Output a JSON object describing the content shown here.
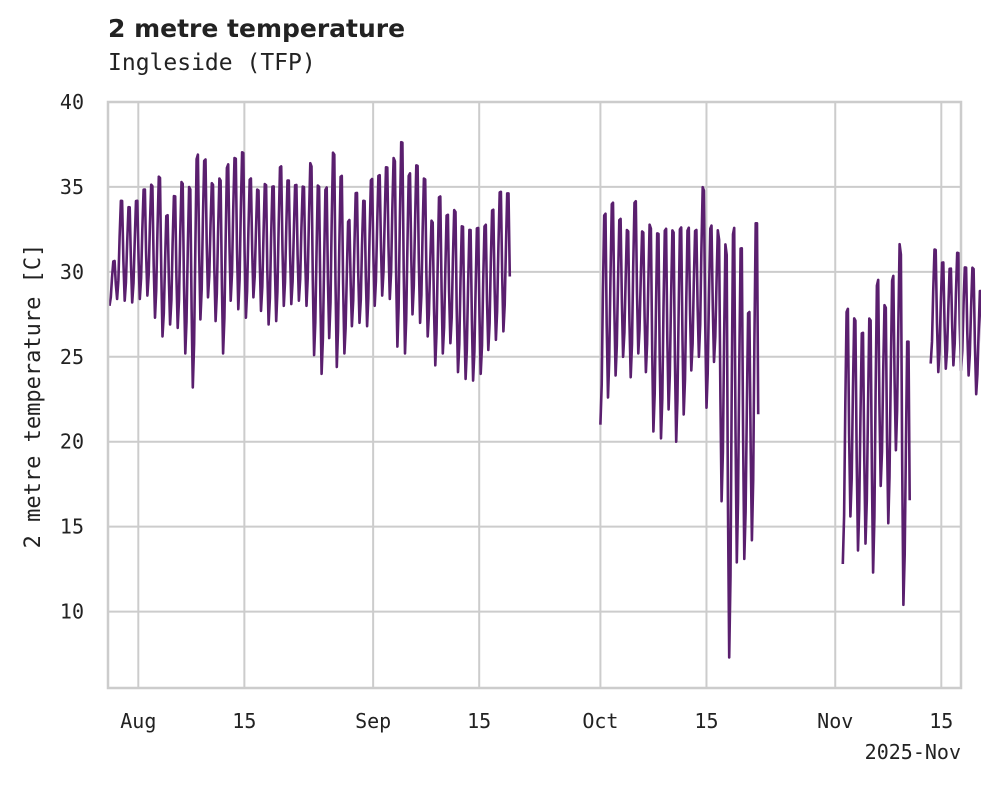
{
  "chart_data": {
    "type": "line",
    "title": "2 metre temperature",
    "subtitle": "Ingleside (TFP)",
    "ylabel": "2 metre temperature [C]",
    "xlabel": "",
    "x_offset_label": "2025-Nov",
    "ylim": [
      5.5,
      40
    ],
    "xlim_days": [
      0,
      112.6
    ],
    "x_start_date": "2025-07-28",
    "yticks": [
      10,
      15,
      20,
      25,
      30,
      35,
      40
    ],
    "xticks": [
      {
        "day": 4,
        "label": "Aug"
      },
      {
        "day": 18,
        "label": "15"
      },
      {
        "day": 35,
        "label": "Sep"
      },
      {
        "day": 49,
        "label": "15"
      },
      {
        "day": 65,
        "label": "Oct"
      },
      {
        "day": 79,
        "label": "15"
      },
      {
        "day": 96,
        "label": "Nov"
      },
      {
        "day": 110,
        "label": "15"
      }
    ],
    "grid": true,
    "series": [
      {
        "name": "2 metre temperature",
        "color": "#5a1f6e",
        "segments": [
          {
            "start_day": 0.2,
            "max": [
              30.8,
              34.6,
              34.2,
              34.6,
              35.3,
              35.6,
              36.2,
              33.8,
              35.0,
              35.9,
              35.7,
              37.6,
              37.2,
              35.7,
              36.1,
              36.9,
              37.3,
              37.7,
              36.0,
              35.3,
              35.7,
              35.6,
              36.8,
              35.9,
              35.6,
              35.5,
              37.0,
              35.8,
              35.6,
              37.8,
              36.4,
              33.5,
              35.2,
              34.7,
              36.0,
              36.2,
              36.7,
              37.3,
              38.5,
              36.4,
              36.9,
              36.1,
              33.5,
              35.1,
              33.9,
              34.2,
              33.3,
              33.1,
              33.2,
              33.3,
              34.2,
              35.3,
              35.2
            ],
            "min": [
              28.0,
              28.4,
              28.3,
              28.2,
              28.4,
              28.6,
              27.3,
              26.2,
              26.9,
              26.7,
              25.2,
              23.2,
              27.2,
              28.5,
              27.1,
              25.2,
              28.3,
              27.8,
              27.3,
              28.5,
              27.7,
              26.9,
              27.1,
              28.0,
              28.1,
              28.3,
              28.0,
              25.1,
              24.0,
              26.1,
              24.4,
              25.2,
              26.8,
              27.0,
              26.8,
              28.0,
              28.6,
              28.4,
              25.6,
              25.2,
              27.5,
              27.0,
              26.2,
              24.5,
              25.2,
              25.8,
              24.1,
              23.7,
              23.6,
              24.0,
              25.4,
              26.0,
              26.5
            ]
          },
          {
            "start_day": 65.0,
            "max": [
              34.2,
              34.8,
              33.7,
              33.0,
              34.8,
              32.9,
              33.4,
              33.1,
              33.3,
              33.2,
              33.4,
              33.2,
              33.0,
              35.7,
              33.3,
              33.0,
              32.7,
              34.0,
              32.7,
              28.6,
              34.2
            ],
            "min": [
              21.0,
              22.6,
              23.9,
              25.0,
              23.8,
              25.2,
              24.1,
              20.6,
              20.2,
              21.9,
              20.0,
              21.6,
              24.2,
              25.0,
              22.0,
              24.7,
              16.5,
              7.3,
              12.9,
              13.1,
              14.2
            ]
          },
          {
            "start_day": 97.0,
            "max": [
              28.7,
              28.1,
              27.3,
              28.2,
              30.4,
              28.8,
              30.5,
              32.5,
              27.0
            ],
            "min": [
              12.8,
              15.6,
              13.6,
              14.0,
              12.3,
              17.4,
              15.2,
              19.5,
              10.4
            ]
          },
          {
            "start_day": 108.6,
            "max": [
              31.8,
              31.0,
              30.6,
              31.6,
              30.7,
              30.7,
              29.3
            ],
            "min": [
              24.6,
              24.1,
              24.3,
              24.5,
              24.2,
              23.9,
              22.8
            ]
          }
        ]
      }
    ]
  }
}
